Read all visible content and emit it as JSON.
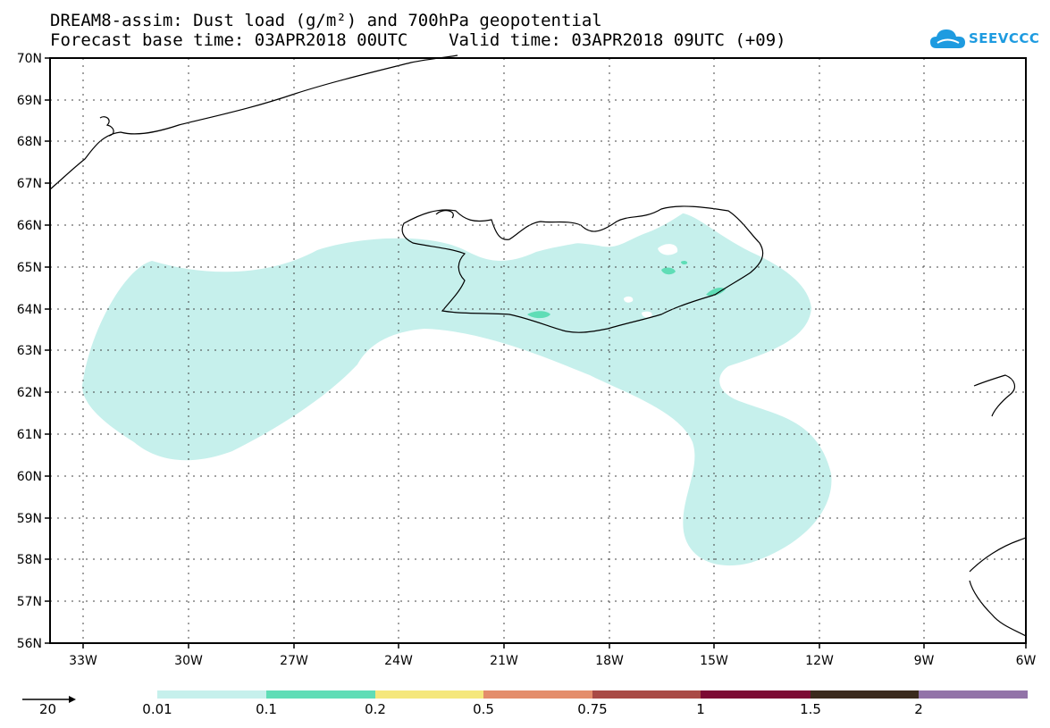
{
  "title_line1": "DREAM8-assim: Dust load (g/m²) and 700hPa geopotential",
  "title_line2": "Forecast base time: 03APR2018 00UTC    Valid time: 03APR2018 09UTC (+09)",
  "logo_text": "SEEVCCC",
  "lat_labels": [
    "70N",
    "69N",
    "68N",
    "67N",
    "66N",
    "65N",
    "64N",
    "63N",
    "62N",
    "61N",
    "60N",
    "59N",
    "58N",
    "57N",
    "56N"
  ],
  "lon_labels": [
    "33W",
    "30W",
    "27W",
    "24W",
    "21W",
    "18W",
    "15W",
    "12W",
    "9W",
    "6W"
  ],
  "colors": {
    "c1": "#c6f0ec",
    "c2": "#5fddb6",
    "c3": "#f5e77c",
    "c4": "#e48d6b",
    "c5": "#a94a45",
    "c6": "#7c0a34",
    "c7": "#3b2a1d",
    "c8": "#9273a8",
    "logo": "#1e9be0"
  },
  "legend": {
    "vector_value": "20",
    "thresholds": [
      "0.01",
      "0.1",
      "0.2",
      "0.5",
      "0.75",
      "1",
      "1.5",
      "2"
    ]
  }
}
